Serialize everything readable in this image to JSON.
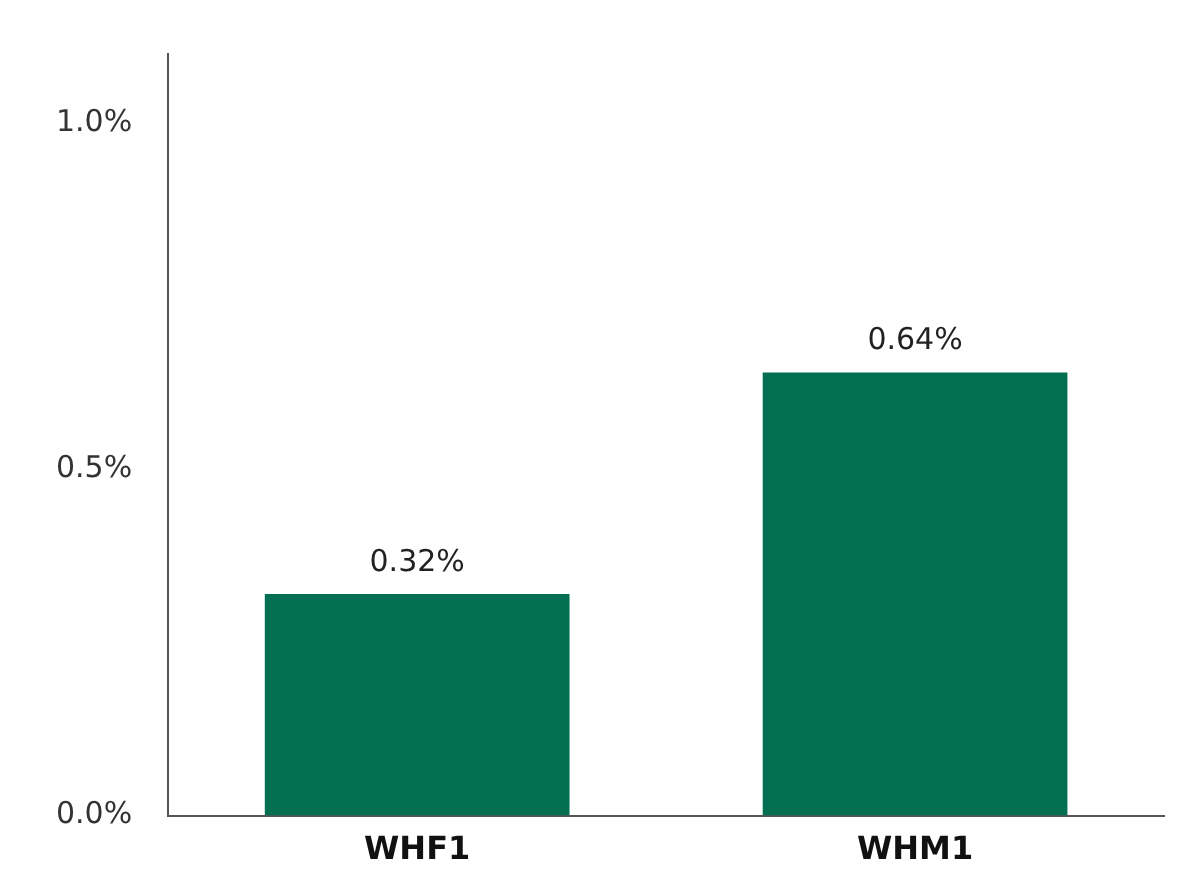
{
  "chart_data": {
    "type": "bar",
    "categories": [
      "WHF1",
      "WHM1"
    ],
    "values": [
      0.32,
      0.64
    ],
    "value_labels": [
      "0.32%",
      "0.64%"
    ],
    "color": "#036f52",
    "ylim": [
      0,
      1.1
    ],
    "yticks": [
      {
        "value": 0,
        "label": "0.0%"
      },
      {
        "value": 0.5,
        "label": "0.5%"
      },
      {
        "value": 1,
        "label": "1.0%"
      }
    ],
    "grid": false,
    "legend": false
  }
}
